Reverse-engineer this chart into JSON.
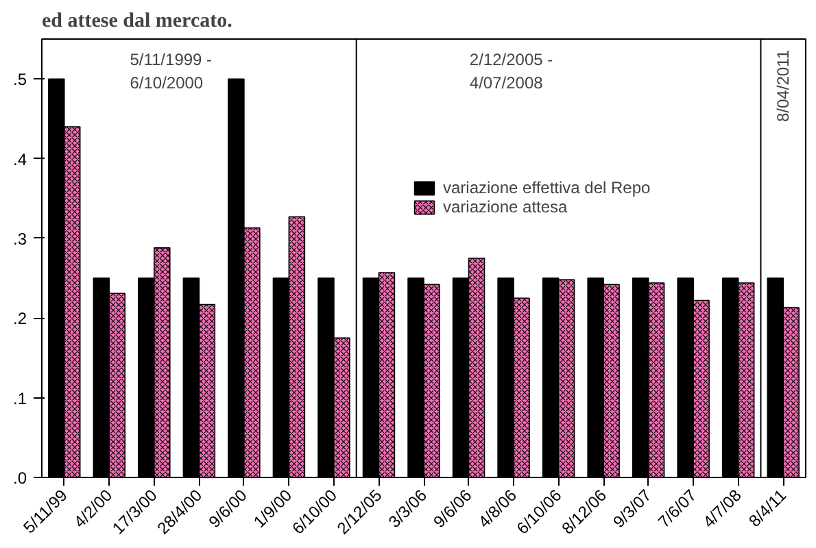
{
  "chart_data": {
    "type": "bar",
    "title": "ed attese dal mercato.",
    "categories": [
      "5/11/99",
      "4/2/00",
      "17/3/00",
      "28/4/00",
      "9/6/00",
      "1/9/00",
      "6/10/00",
      "2/12/05",
      "3/3/06",
      "9/6/06",
      "4/8/06",
      "6/10/06",
      "8/12/06",
      "9/3/07",
      "7/6/07",
      "4/7/08",
      "8/4/11"
    ],
    "series": [
      {
        "name": "variazione effettiva del Repo",
        "color": "#000000",
        "values": [
          0.5,
          0.25,
          0.25,
          0.25,
          0.5,
          0.25,
          0.25,
          0.25,
          0.25,
          0.25,
          0.25,
          0.25,
          0.25,
          0.25,
          0.25,
          0.25,
          0.25
        ]
      },
      {
        "name": "variazione attesa",
        "color": "#f06eb4",
        "values": [
          0.44,
          0.231,
          0.288,
          0.217,
          0.313,
          0.327,
          0.175,
          0.257,
          0.242,
          0.275,
          0.225,
          0.248,
          0.242,
          0.244,
          0.222,
          0.244,
          0.213
        ]
      }
    ],
    "ylim": [
      0,
      0.55
    ],
    "yticks": [
      {
        "value": 0,
        "label": ".0"
      },
      {
        "value": 0.1,
        "label": ".1"
      },
      {
        "value": 0.2,
        "label": ".2"
      },
      {
        "value": 0.3,
        "label": ".3"
      },
      {
        "value": 0.4,
        "label": ".4"
      },
      {
        "value": 0.5,
        "label": ".5"
      }
    ],
    "annotations": [
      "5/11/1999 -\n6/10/2000",
      "2/12/2005 -\n4/07/2008",
      "8/04/2011"
    ],
    "legend": "right",
    "grid": false
  }
}
